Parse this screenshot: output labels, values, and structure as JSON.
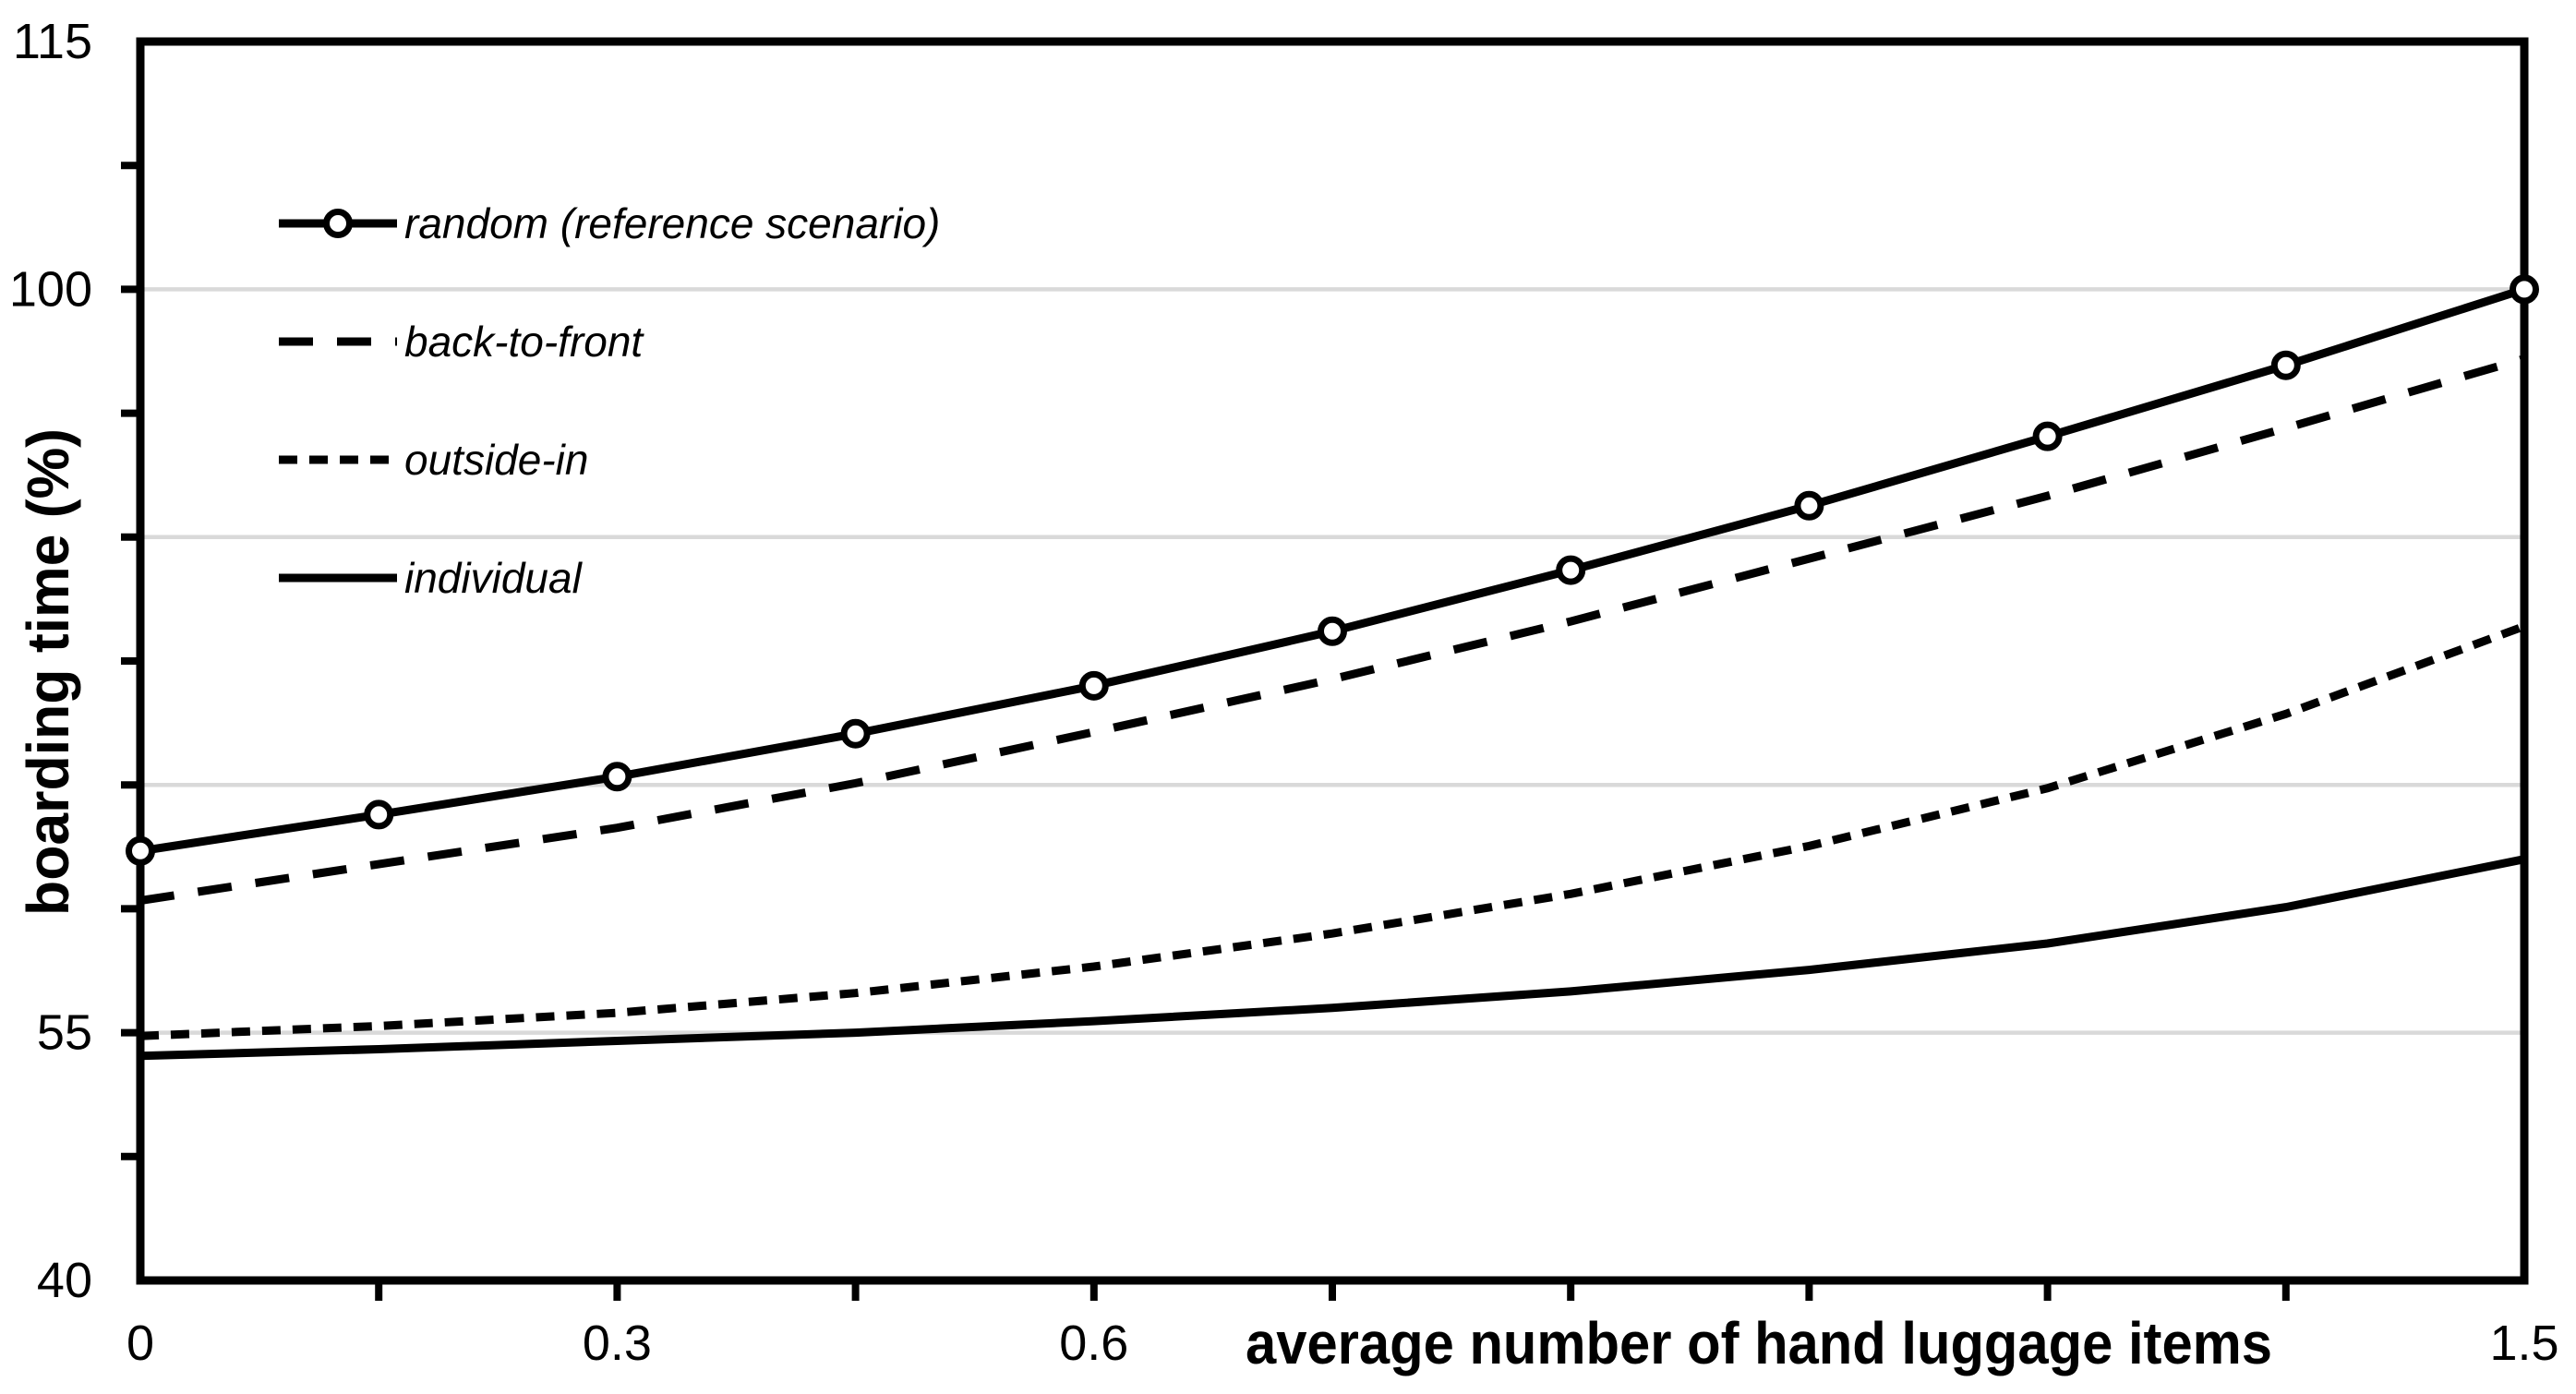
{
  "chart_data": {
    "type": "line",
    "title": "",
    "xlabel": "average number of hand luggage items",
    "ylabel": "boarding time (%)",
    "xlim": [
      0,
      1.5
    ],
    "ylim": [
      40,
      115
    ],
    "grid_on": true,
    "legend_position": "top-left-inside",
    "colors": {
      "series": "#000000",
      "grid": "#d9d9d9",
      "background": "#ffffff",
      "marker_fill": "#ffffff"
    },
    "x": [
      0,
      0.15,
      0.3,
      0.45,
      0.6,
      0.75,
      0.9,
      1.05,
      1.2,
      1.35,
      1.5
    ],
    "x_tick_labels": [
      {
        "value": 0,
        "label": "0"
      },
      {
        "value": 0.3,
        "label": "0.3"
      },
      {
        "value": 0.6,
        "label": "0.6"
      },
      {
        "value": 1.5,
        "label": "1.5"
      }
    ],
    "x_minor_ticks": [
      0.15,
      0.3,
      0.45,
      0.6,
      0.75,
      0.9,
      1.05,
      1.2,
      1.35
    ],
    "y_tick_labels": [
      {
        "value": 115,
        "label": "115"
      },
      {
        "value": 100,
        "label": "100"
      },
      {
        "value": 55,
        "label": "55"
      },
      {
        "value": 40,
        "label": "40"
      }
    ],
    "y_minor_ticks": [
      47.5,
      55,
      62.5,
      70,
      77.5,
      85,
      92.5,
      100,
      107.5
    ],
    "gridlines_y": [
      55,
      70,
      85,
      100
    ],
    "series": [
      {
        "name": "random",
        "label": "random (reference scenario)",
        "line": "solid",
        "marker": "circle",
        "values": [
          66.0,
          68.2,
          70.5,
          73.1,
          76.0,
          79.3,
          83.0,
          86.9,
          91.1,
          95.4,
          100.0
        ]
      },
      {
        "name": "back-to-front",
        "label": "back-to-front",
        "line": "long-dash",
        "marker": null,
        "values": [
          63.0,
          65.2,
          67.4,
          70.1,
          73.2,
          76.4,
          79.9,
          83.7,
          87.5,
          91.6,
          95.8
        ]
      },
      {
        "name": "outside-in",
        "label": "outside-in",
        "line": "short-dash",
        "marker": null,
        "values": [
          54.8,
          55.4,
          56.2,
          57.4,
          59.0,
          61.0,
          63.4,
          66.3,
          69.8,
          74.3,
          79.6
        ]
      },
      {
        "name": "individual",
        "label": "individual",
        "line": "solid",
        "marker": null,
        "values": [
          53.6,
          54.0,
          54.5,
          55.0,
          55.7,
          56.5,
          57.5,
          58.8,
          60.4,
          62.6,
          65.5
        ]
      }
    ]
  }
}
